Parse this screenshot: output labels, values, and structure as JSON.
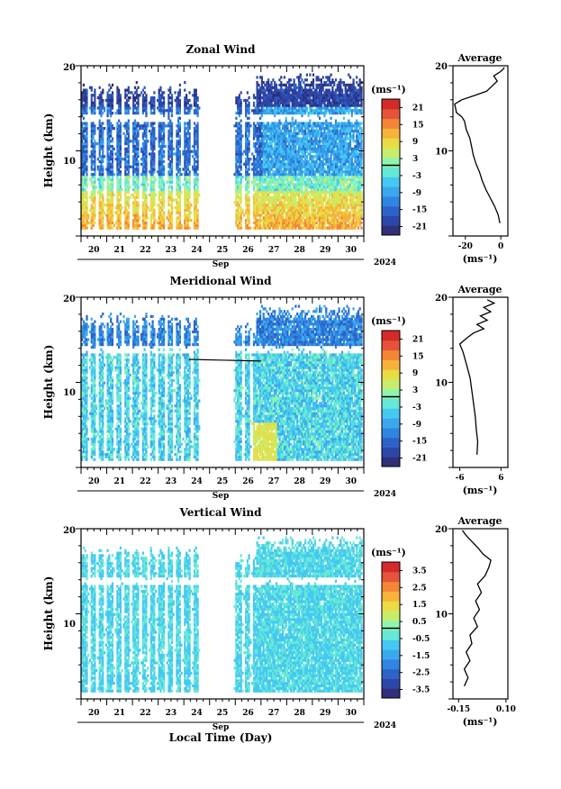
{
  "figure": {
    "year_label": "2024",
    "xlabel": "Local Time (Day)",
    "month_label": "Sep",
    "day_ticks": [
      "20",
      "21",
      "22",
      "23",
      "24",
      "25",
      "26",
      "27",
      "28",
      "29",
      "30"
    ]
  },
  "colormap": [
    "#2f2f7a",
    "#2d47a8",
    "#2d63c9",
    "#2f86e0",
    "#3ba8ee",
    "#45c9f2",
    "#66e8d6",
    "#8ef5b0",
    "#c7ed6a",
    "#eadb45",
    "#f7b23a",
    "#f28636",
    "#e5533a",
    "#d42a2a"
  ],
  "chart_data": [
    {
      "type": "heatmap",
      "panel": "zonal",
      "title": "Zonal Wind",
      "ylabel": "Height (km)",
      "yticks": [
        "20",
        "10"
      ],
      "ylim": [
        0,
        20
      ],
      "xlim": [
        20,
        31
      ],
      "unit_label": "(ms⁻¹)",
      "colorbar_ticks": [
        "21",
        "15",
        "9",
        "3",
        "-3",
        "-9",
        "-15",
        "-21"
      ],
      "colorbar_range": [
        -24,
        24
      ],
      "profile": {
        "title": "Average",
        "xlabel": "(ms⁻¹)",
        "xticks": [
          "-20",
          "0"
        ],
        "xlim": [
          -27,
          4
        ],
        "yticks": [
          "20",
          "10"
        ],
        "points": [
          [
            -0.5,
            1.5
          ],
          [
            -1.5,
            2.5
          ],
          [
            -3.5,
            3.5
          ],
          [
            -6,
            4.5
          ],
          [
            -8.5,
            5.5
          ],
          [
            -10.5,
            6.5
          ],
          [
            -12,
            7.5
          ],
          [
            -14,
            8.5
          ],
          [
            -15.5,
            9.5
          ],
          [
            -16.5,
            10.5
          ],
          [
            -17.5,
            11.5
          ],
          [
            -19.5,
            12.5
          ],
          [
            -20.5,
            13.5
          ],
          [
            -22,
            14
          ],
          [
            -25,
            14.5
          ],
          [
            -26,
            15.5
          ],
          [
            -22,
            16
          ],
          [
            -15,
            16.5
          ],
          [
            -8,
            17
          ],
          [
            -5,
            17.6
          ],
          [
            -2,
            18.2
          ],
          [
            -4,
            18.8
          ],
          [
            -1,
            19.2
          ],
          [
            1,
            19.5
          ],
          [
            2,
            19.8
          ]
        ]
      }
    },
    {
      "type": "heatmap",
      "panel": "meridional",
      "title": "Meridional Wind",
      "ylabel": "Height (km)",
      "yticks": [
        "20",
        "10"
      ],
      "ylim": [
        0,
        20
      ],
      "xlim": [
        20,
        31
      ],
      "unit_label": "(ms⁻¹)",
      "colorbar_ticks": [
        "21",
        "15",
        "9",
        "3",
        "-3",
        "-9",
        "-15",
        "-21"
      ],
      "colorbar_range": [
        -24,
        24
      ],
      "profile": {
        "title": "Average",
        "xlabel": "(ms⁻¹)",
        "xticks": [
          "-6",
          "6"
        ],
        "xlim": [
          -8,
          8
        ],
        "yticks": [
          "20",
          "10"
        ],
        "points": [
          [
            -1,
            1.5
          ],
          [
            -0.8,
            3
          ],
          [
            -1.2,
            4.5
          ],
          [
            -1.5,
            6
          ],
          [
            -2,
            7.5
          ],
          [
            -2.5,
            9
          ],
          [
            -3,
            10.5
          ],
          [
            -4,
            12
          ],
          [
            -5,
            13.5
          ],
          [
            -6,
            14.5
          ],
          [
            -4,
            15.2
          ],
          [
            -2,
            15.8
          ],
          [
            1,
            16.3
          ],
          [
            -1,
            16.8
          ],
          [
            2,
            17.3
          ],
          [
            0,
            17.8
          ],
          [
            3,
            18.3
          ],
          [
            1,
            18.8
          ],
          [
            4,
            19.3
          ],
          [
            2,
            19.7
          ]
        ]
      }
    },
    {
      "type": "heatmap",
      "panel": "vertical",
      "title": "Vertical Wind",
      "ylabel": "Height (km)",
      "yticks": [
        "20",
        "10"
      ],
      "ylim": [
        0,
        20
      ],
      "xlim": [
        20,
        31
      ],
      "unit_label": "(ms⁻¹)",
      "colorbar_ticks": [
        "3.5",
        "2.5",
        "1.5",
        "0.5",
        "-0.5",
        "-1.5",
        "-2.5",
        "-3.5"
      ],
      "colorbar_range": [
        -4,
        4
      ],
      "profile": {
        "title": "Average",
        "xlabel": "(ms⁻¹)",
        "xticks": [
          "-0.15",
          "0.10"
        ],
        "xlim": [
          -0.18,
          0.11
        ],
        "yticks": [
          "20",
          "10"
        ],
        "points": [
          [
            -0.12,
            1.5
          ],
          [
            -0.1,
            2.5
          ],
          [
            -0.12,
            3.5
          ],
          [
            -0.09,
            4.5
          ],
          [
            -0.11,
            5.5
          ],
          [
            -0.08,
            6.5
          ],
          [
            -0.09,
            7.5
          ],
          [
            -0.05,
            8.5
          ],
          [
            -0.07,
            9.5
          ],
          [
            -0.04,
            10.5
          ],
          [
            -0.06,
            11.5
          ],
          [
            -0.03,
            12.5
          ],
          [
            -0.05,
            13.5
          ],
          [
            -0.01,
            14.5
          ],
          [
            0.01,
            15.5
          ],
          [
            0.02,
            16.3
          ],
          [
            -0.02,
            17
          ],
          [
            -0.05,
            17.8
          ],
          [
            -0.08,
            18.5
          ],
          [
            -0.11,
            19.2
          ],
          [
            -0.13,
            19.8
          ]
        ]
      }
    }
  ]
}
